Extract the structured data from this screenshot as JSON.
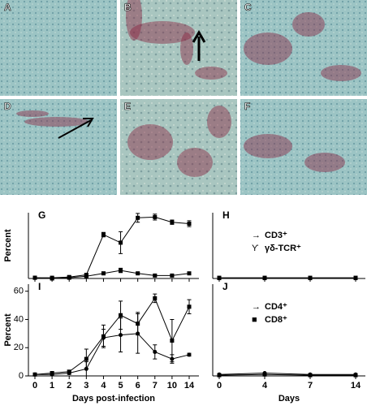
{
  "panels": [
    "A",
    "B",
    "C",
    "D",
    "E",
    "F"
  ],
  "chart_data": [
    {
      "type": "line",
      "panel": "G",
      "ylabel": "Percent",
      "ylim": [
        0,
        90
      ],
      "series": [
        {
          "name": null,
          "color": "#000000",
          "marker": "square",
          "values": [
            1,
            1,
            2,
            5,
            60,
            49,
            83,
            84,
            77,
            75
          ],
          "errors": [
            1,
            1,
            1,
            1,
            3,
            15,
            6,
            4,
            3,
            4
          ]
        },
        {
          "name": null,
          "color": "#000000",
          "marker": "square",
          "values": [
            1,
            0,
            1,
            3,
            7,
            11,
            7,
            4,
            4,
            7
          ],
          "errors": [
            1,
            1,
            1,
            1,
            2,
            3,
            1,
            1,
            1,
            1
          ]
        }
      ]
    },
    {
      "type": "line",
      "panel": "H",
      "ylim": [
        0,
        90
      ],
      "series": [
        {
          "name": "CD3⁺",
          "symbol": "→",
          "color": "#000000",
          "marker": "square",
          "values": [
            1,
            1,
            1,
            1
          ]
        },
        {
          "name": "γδ-TCR⁺",
          "symbol": "ϒ",
          "color": "#000000",
          "marker": "square",
          "values": [
            0.5,
            0.5,
            0.5,
            0.5
          ]
        }
      ]
    },
    {
      "type": "line",
      "panel": "I",
      "ylabel": "Percent",
      "xlabel": "Days post-infection",
      "ylim": [
        0,
        65
      ],
      "yticks": [
        0,
        20,
        40,
        60
      ],
      "categories": [
        "0",
        "1",
        "2",
        "3",
        "4",
        "5",
        "6",
        "7",
        "10",
        "14"
      ],
      "series": [
        {
          "name": null,
          "color": "#000000",
          "marker": "circle",
          "values": [
            1,
            1,
            2,
            5,
            27,
            29,
            30,
            17,
            12,
            15
          ],
          "errors": [
            1,
            1,
            1,
            5,
            6,
            12,
            14,
            5,
            3,
            1
          ]
        },
        {
          "name": null,
          "color": "#000000",
          "marker": "square",
          "values": [
            1,
            2,
            3,
            12,
            28,
            43,
            37,
            55,
            25,
            49
          ],
          "errors": [
            1,
            1,
            1,
            7,
            8,
            10,
            8,
            3,
            15,
            5
          ]
        }
      ]
    },
    {
      "type": "line",
      "panel": "J",
      "xlabel": "Days",
      "ylim": [
        0,
        65
      ],
      "categories": [
        "0",
        "4",
        "7",
        "14"
      ],
      "series": [
        {
          "name": "CD4⁺",
          "symbol": "→",
          "color": "#000000",
          "marker": "circle",
          "values": [
            1,
            2,
            1,
            1
          ]
        },
        {
          "name": "CD8⁺",
          "symbol": "■",
          "color": "#000000",
          "marker": "square",
          "values": [
            0.5,
            1,
            0.5,
            0.5
          ]
        }
      ]
    }
  ]
}
